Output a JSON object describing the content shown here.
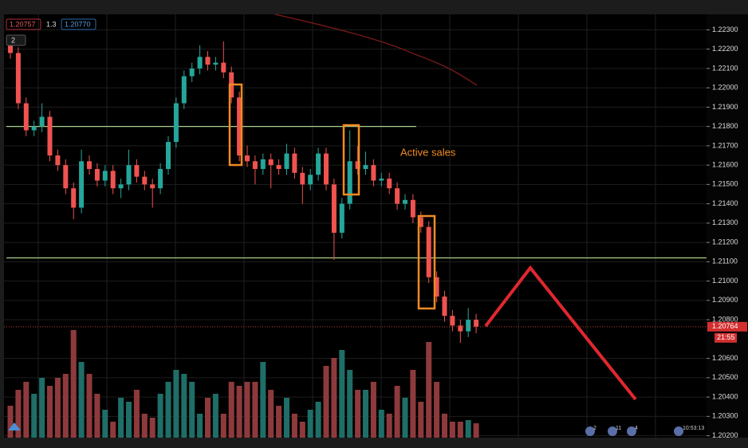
{
  "chart_data": {
    "type": "candlestick",
    "header": {
      "bid": "1.20757",
      "spread": "1.3",
      "ask": "1.20770",
      "layers": "2"
    },
    "annotation": "Active sales",
    "countdown": "21:55",
    "events": [
      "2",
      "11",
      "4"
    ],
    "clock": "10:53:13",
    "up_color": "#26a69a",
    "down_color": "#ef5350",
    "volume_up_color": "#1f6e68",
    "volume_down_color": "#8e3a3c",
    "level_color": "#a8d08d",
    "levels": [
      1.218,
      1.2112
    ],
    "ylim": [
      1.2019,
      1.2238
    ],
    "yticks": [
      {
        "value": 1.223,
        "label": "1.22300"
      },
      {
        "value": 1.222,
        "label": "1.22200"
      },
      {
        "value": 1.221,
        "label": "1.22100"
      },
      {
        "value": 1.22,
        "label": "1.22000"
      },
      {
        "value": 1.219,
        "label": "1.21900"
      },
      {
        "value": 1.218,
        "label": "1.21800"
      },
      {
        "value": 1.217,
        "label": "1.21700"
      },
      {
        "value": 1.216,
        "label": "1.21600"
      },
      {
        "value": 1.215,
        "label": "1.21500"
      },
      {
        "value": 1.214,
        "label": "1.21400"
      },
      {
        "value": 1.213,
        "label": "1.21300"
      },
      {
        "value": 1.212,
        "label": "1.21200"
      },
      {
        "value": 1.211,
        "label": "1.21100"
      },
      {
        "value": 1.21,
        "label": "1.21000"
      },
      {
        "value": 1.209,
        "label": "1.20900"
      },
      {
        "value": 1.208,
        "label": "1.20800"
      },
      {
        "value": 1.206,
        "label": "1.20600"
      },
      {
        "value": 1.205,
        "label": "1.20500"
      },
      {
        "value": 1.204,
        "label": "1.20400"
      },
      {
        "value": 1.203,
        "label": "1.20300"
      },
      {
        "value": 1.202,
        "label": "1.20200"
      }
    ],
    "open": [
      1.2222,
      1.2218,
      1.2192,
      1.2178,
      1.218,
      1.2185,
      1.2165,
      1.216,
      1.2148,
      1.2138,
      1.2162,
      1.2158,
      1.2152,
      1.2157,
      1.2148,
      1.215,
      1.216,
      1.2154,
      1.215,
      1.2148,
      1.2158,
      1.2172,
      1.2192,
      1.2206,
      1.221,
      1.2216,
      1.2212,
      1.2213,
      1.2208,
      1.2195,
      1.2165,
      1.2162,
      1.2158,
      1.2163,
      1.216,
      1.2158,
      1.2166,
      1.2156,
      1.215,
      1.2155,
      1.2166,
      1.215,
      1.2125,
      1.214,
      1.2162,
      1.2158,
      1.216,
      1.2152,
      1.2153,
      1.2148,
      1.214,
      1.2142,
      1.2133,
      1.2128,
      1.2102,
      1.2092,
      1.2082,
      1.2077,
      1.2074,
      1.208
    ],
    "high": [
      1.2225,
      1.2221,
      1.2195,
      1.2183,
      1.2192,
      1.2188,
      1.2168,
      1.2163,
      1.2151,
      1.2168,
      1.2165,
      1.2161,
      1.216,
      1.216,
      1.2153,
      1.2168,
      1.2163,
      1.2157,
      1.2153,
      1.2161,
      1.2175,
      1.2195,
      1.2209,
      1.2213,
      1.2222,
      1.2219,
      1.2216,
      1.2224,
      1.2211,
      1.2198,
      1.217,
      1.2165,
      1.2166,
      1.2166,
      1.2163,
      1.2171,
      1.2169,
      1.2159,
      1.2158,
      1.2169,
      1.2169,
      1.2153,
      1.2143,
      1.2178,
      1.217,
      1.2167,
      1.2163,
      1.2156,
      1.2156,
      1.2151,
      1.2145,
      1.2145,
      1.2136,
      1.2131,
      1.2105,
      1.2095,
      1.2085,
      1.208,
      1.2086,
      1.2083
    ],
    "low": [
      1.2215,
      1.2189,
      1.2175,
      1.2175,
      1.2177,
      1.2162,
      1.2157,
      1.2145,
      1.2132,
      1.2135,
      1.2155,
      1.2149,
      1.2149,
      1.2145,
      1.2143,
      1.2147,
      1.2151,
      1.2147,
      1.2138,
      1.2145,
      1.2155,
      1.2169,
      1.2189,
      1.2203,
      1.2207,
      1.2209,
      1.2209,
      1.2205,
      1.2192,
      1.2162,
      1.2159,
      1.215,
      1.2155,
      1.2148,
      1.2155,
      1.2155,
      1.2153,
      1.214,
      1.2147,
      1.2152,
      1.2147,
      1.2111,
      1.2122,
      1.2137,
      1.2155,
      1.2155,
      1.2149,
      1.2149,
      1.2145,
      1.2137,
      1.2137,
      1.213,
      1.2125,
      1.2099,
      1.2089,
      1.2079,
      1.2074,
      1.2068,
      1.2071,
      1.2073
    ],
    "close": [
      1.2218,
      1.2192,
      1.2178,
      1.218,
      1.2185,
      1.2165,
      1.216,
      1.2148,
      1.2138,
      1.2162,
      1.2158,
      1.2152,
      1.2157,
      1.2148,
      1.215,
      1.216,
      1.2154,
      1.215,
      1.2148,
      1.2158,
      1.2172,
      1.2192,
      1.2206,
      1.221,
      1.2216,
      1.2212,
      1.2213,
      1.2208,
      1.2195,
      1.2165,
      1.2162,
      1.2158,
      1.2163,
      1.216,
      1.2158,
      1.2166,
      1.2156,
      1.215,
      1.2155,
      1.2166,
      1.215,
      1.2125,
      1.214,
      1.2162,
      1.2158,
      1.216,
      1.2152,
      1.2153,
      1.2148,
      1.214,
      1.2142,
      1.2133,
      1.2128,
      1.2102,
      1.2092,
      1.2082,
      1.2077,
      1.2074,
      1.208,
      1.20764
    ],
    "volume": [
      40,
      60,
      70,
      55,
      75,
      65,
      75,
      80,
      135,
      95,
      80,
      55,
      35,
      20,
      50,
      45,
      60,
      30,
      25,
      55,
      70,
      85,
      80,
      70,
      30,
      50,
      55,
      30,
      70,
      65,
      70,
      70,
      95,
      60,
      40,
      50,
      30,
      20,
      35,
      45,
      90,
      100,
      110,
      85,
      60,
      60,
      70,
      35,
      30,
      65,
      50,
      85,
      45,
      120,
      70,
      30,
      20,
      20,
      22,
      18
    ]
  }
}
